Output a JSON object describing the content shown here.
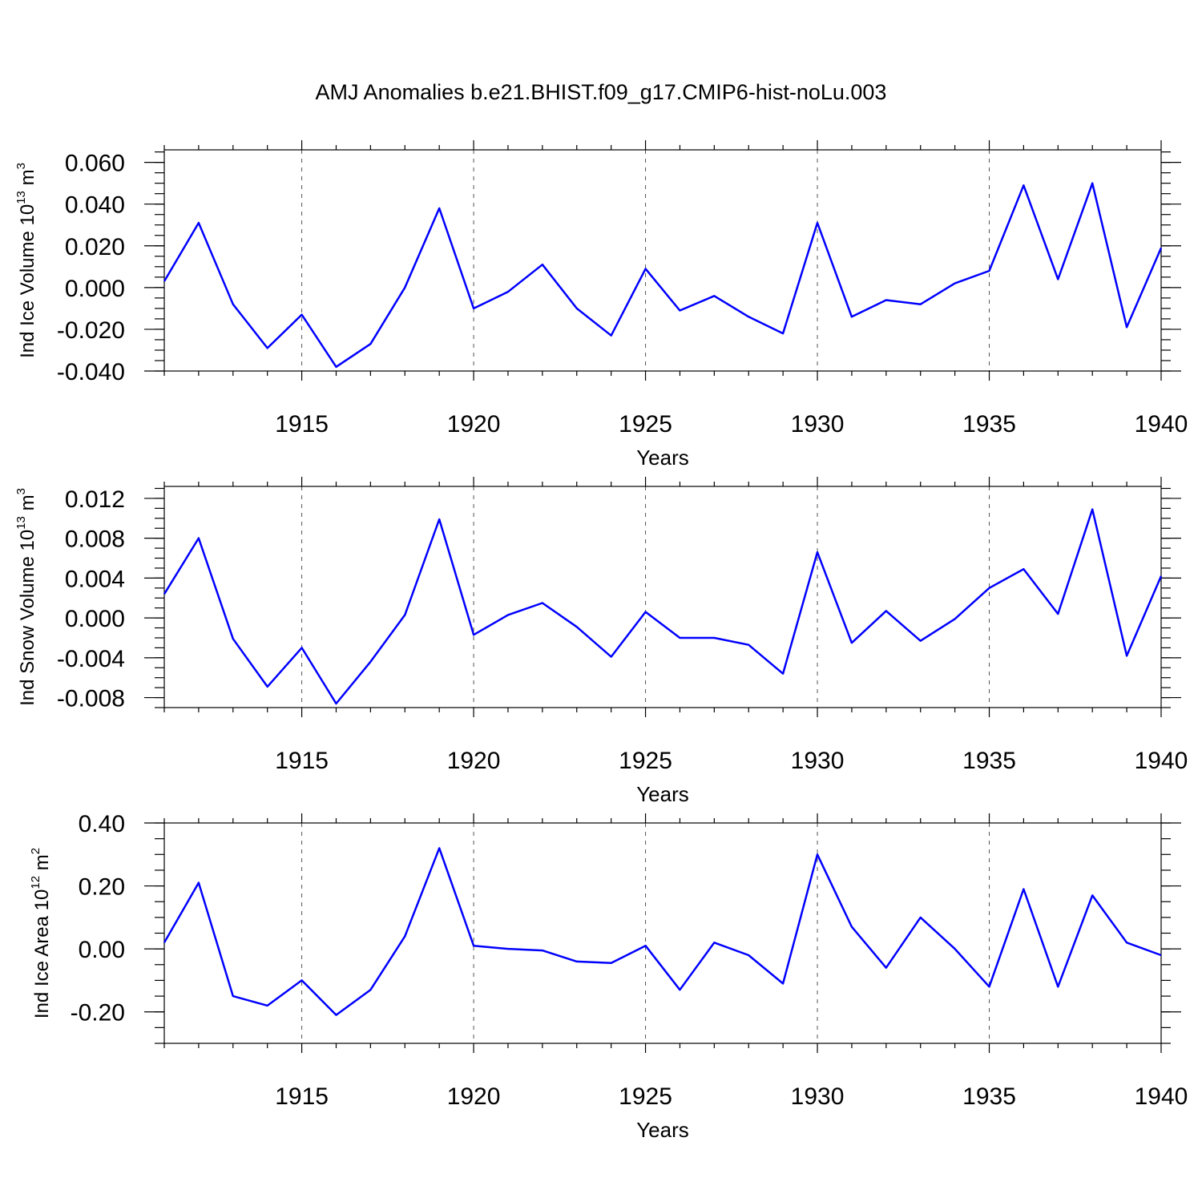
{
  "title": "AMJ Anomalies b.e21.BHIST.f09_g17.CMIP6-hist-noLu.003",
  "colors": {
    "series": "#0000ff",
    "grid": "#555555",
    "axis": "#000000"
  },
  "chart_data": [
    {
      "type": "line",
      "title": "AMJ Anomalies b.e21.BHIST.f09_g17.CMIP6-hist-noLu.003",
      "ylabel": "Ind Ice Volume 10",
      "ylabel_exp": "13",
      "ylabel_unit": " m",
      "ylabel_unit_exp": "3",
      "xlabel": "Years",
      "xlim": [
        1911,
        1940
      ],
      "ylim": [
        -0.04,
        0.066
      ],
      "yticks": [
        -0.04,
        -0.02,
        0.0,
        0.02,
        0.04,
        0.06
      ],
      "ytick_labels": [
        "-0.040",
        "-0.020",
        "0.000",
        "0.020",
        "0.040",
        "0.060"
      ],
      "yminor_step": 0.005,
      "xticks": [
        1915,
        1920,
        1925,
        1930,
        1935,
        1940
      ],
      "xtick_labels": [
        "1915",
        "1920",
        "1925",
        "1930",
        "1935",
        "1940"
      ],
      "vgrid": [
        1915,
        1920,
        1925,
        1930,
        1935
      ],
      "series": [
        {
          "name": "Ind Ice Volume",
          "x": [
            1911,
            1912,
            1913,
            1914,
            1915,
            1916,
            1917,
            1918,
            1919,
            1920,
            1921,
            1922,
            1923,
            1924,
            1925,
            1926,
            1927,
            1928,
            1929,
            1930,
            1931,
            1932,
            1933,
            1934,
            1935,
            1936,
            1937,
            1938,
            1939,
            1940
          ],
          "values": [
            0.003,
            0.031,
            -0.008,
            -0.029,
            -0.013,
            -0.038,
            -0.027,
            0.0,
            0.038,
            -0.01,
            -0.002,
            0.011,
            -0.01,
            -0.023,
            0.009,
            -0.011,
            -0.004,
            -0.014,
            -0.022,
            0.031,
            -0.014,
            -0.006,
            -0.008,
            0.002,
            0.008,
            0.049,
            0.004,
            0.05,
            -0.019,
            0.019
          ]
        }
      ]
    },
    {
      "type": "line",
      "ylabel": "Ind Snow Volume 10",
      "ylabel_exp": "13",
      "ylabel_unit": " m",
      "ylabel_unit_exp": "3",
      "xlabel": "Years",
      "xlim": [
        1911,
        1940
      ],
      "ylim": [
        -0.009,
        0.0132
      ],
      "yticks": [
        -0.008,
        -0.004,
        0.0,
        0.004,
        0.008,
        0.012
      ],
      "ytick_labels": [
        "-0.008",
        "-0.004",
        "0.000",
        "0.004",
        "0.008",
        "0.012"
      ],
      "yminor_step": 0.001,
      "xticks": [
        1915,
        1920,
        1925,
        1930,
        1935,
        1940
      ],
      "xtick_labels": [
        "1915",
        "1920",
        "1925",
        "1930",
        "1935",
        "1940"
      ],
      "vgrid": [
        1915,
        1920,
        1925,
        1930,
        1935
      ],
      "series": [
        {
          "name": "Ind Snow Volume",
          "x": [
            1911,
            1912,
            1913,
            1914,
            1915,
            1916,
            1917,
            1918,
            1919,
            1920,
            1921,
            1922,
            1923,
            1924,
            1925,
            1926,
            1927,
            1928,
            1929,
            1930,
            1931,
            1932,
            1933,
            1934,
            1935,
            1936,
            1937,
            1938,
            1939,
            1940
          ],
          "values": [
            0.0024,
            0.008,
            -0.0021,
            -0.0069,
            -0.003,
            -0.0086,
            -0.0044,
            0.0003,
            0.0099,
            -0.0017,
            0.0003,
            0.0015,
            -0.0009,
            -0.0039,
            0.0006,
            -0.002,
            -0.002,
            -0.0027,
            -0.0056,
            0.0066,
            -0.0025,
            0.0007,
            -0.0023,
            -0.0001,
            0.003,
            0.0049,
            0.0004,
            0.0109,
            -0.0038,
            0.0042
          ]
        }
      ]
    },
    {
      "type": "line",
      "ylabel": "Ind Ice Area 10",
      "ylabel_exp": "12",
      "ylabel_unit": " m",
      "ylabel_unit_exp": "2",
      "xlabel": "Years",
      "xlim": [
        1911,
        1940
      ],
      "ylim": [
        -0.3,
        0.4
      ],
      "yticks": [
        -0.2,
        0.0,
        0.2,
        0.4
      ],
      "ytick_labels": [
        "-0.20",
        "0.00",
        "0.20",
        "0.40"
      ],
      "yminor_step": 0.05,
      "xticks": [
        1915,
        1920,
        1925,
        1930,
        1935,
        1940
      ],
      "xtick_labels": [
        "1915",
        "1920",
        "1925",
        "1930",
        "1935",
        "1940"
      ],
      "vgrid": [
        1915,
        1920,
        1925,
        1930,
        1935
      ],
      "series": [
        {
          "name": "Ind Ice Area",
          "x": [
            1911,
            1912,
            1913,
            1914,
            1915,
            1916,
            1917,
            1918,
            1919,
            1920,
            1921,
            1922,
            1923,
            1924,
            1925,
            1926,
            1927,
            1928,
            1929,
            1930,
            1931,
            1932,
            1933,
            1934,
            1935,
            1936,
            1937,
            1938,
            1939,
            1940
          ],
          "values": [
            0.02,
            0.21,
            -0.15,
            -0.18,
            -0.1,
            -0.21,
            -0.13,
            0.04,
            0.32,
            0.01,
            0.0,
            -0.005,
            -0.04,
            -0.045,
            0.01,
            -0.13,
            0.02,
            -0.02,
            -0.11,
            0.3,
            0.07,
            -0.06,
            0.1,
            0.0,
            -0.12,
            0.19,
            -0.12,
            0.17,
            0.02,
            -0.02
          ]
        }
      ]
    }
  ]
}
